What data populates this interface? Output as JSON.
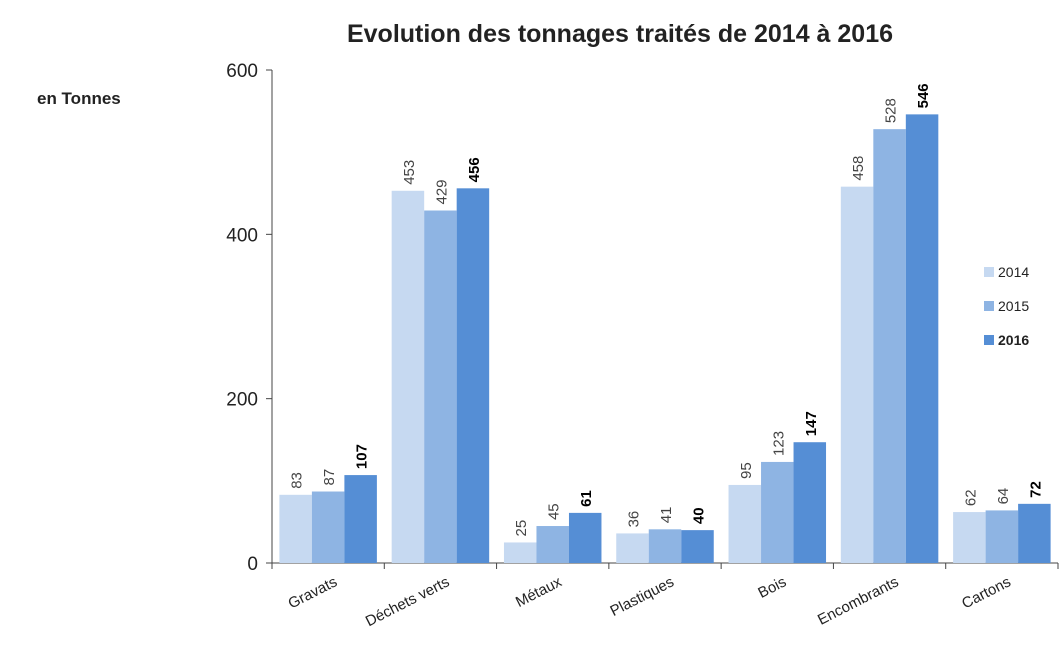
{
  "chart_data": {
    "type": "bar",
    "title": "Evolution des tonnages traités de 2014 à 2016",
    "y_label": "en Tonnes",
    "categories": [
      "Gravats",
      "Déchets verts",
      "Métaux",
      "Plastiques",
      "Bois",
      "Encombrants",
      "Cartons"
    ],
    "series": [
      {
        "name": "2014",
        "color": "#c6d9f1",
        "values": [
          83,
          453,
          25,
          36,
          95,
          458,
          62
        ]
      },
      {
        "name": "2015",
        "color": "#8eb4e3",
        "values": [
          87,
          429,
          45,
          41,
          123,
          528,
          64
        ]
      },
      {
        "name": "2016",
        "color": "#558ed5",
        "values": [
          107,
          456,
          61,
          40,
          147,
          546,
          72
        ]
      }
    ],
    "ylim": [
      0,
      600
    ],
    "yticks": [
      0,
      200,
      400,
      600
    ],
    "legend": "right"
  }
}
